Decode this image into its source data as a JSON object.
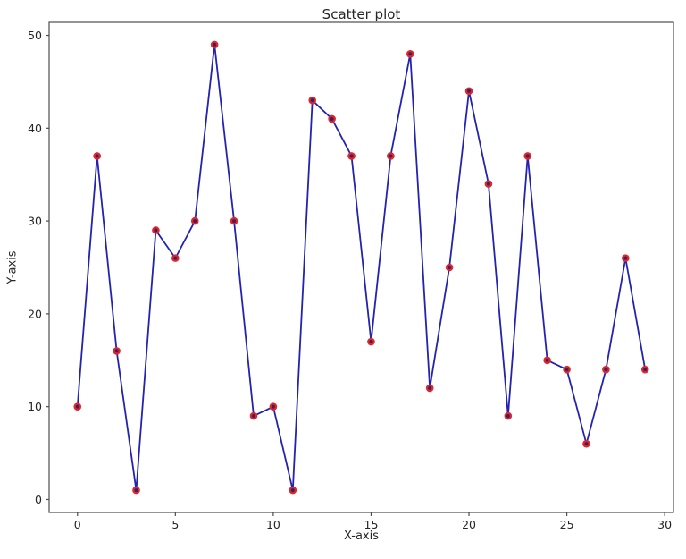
{
  "figure": {
    "title": "Scatter plot",
    "xlabel": "X-axis",
    "ylabel": "Y-axis"
  },
  "chart_data": {
    "type": "line",
    "title": "Scatter plot",
    "xlabel": "X-axis",
    "ylabel": "Y-axis",
    "x": [
      0,
      1,
      2,
      3,
      4,
      5,
      6,
      7,
      8,
      9,
      10,
      11,
      12,
      13,
      14,
      15,
      16,
      17,
      18,
      19,
      20,
      21,
      22,
      23,
      24,
      25,
      26,
      27,
      28,
      29
    ],
    "y": [
      10,
      37,
      16,
      1,
      29,
      26,
      30,
      49,
      30,
      9,
      10,
      1,
      43,
      41,
      37,
      17,
      37,
      48,
      12,
      25,
      44,
      34,
      9,
      37,
      15,
      14,
      6,
      14,
      26,
      14
    ],
    "x_ticks": [
      0,
      5,
      10,
      15,
      20,
      25,
      30
    ],
    "y_ticks": [
      0,
      10,
      20,
      30,
      40,
      50
    ],
    "xlim": [
      -1.45,
      30.45
    ],
    "ylim": [
      -1.4,
      51.4
    ],
    "grid": false,
    "legend": null,
    "marker_style": "circle",
    "line_color": "#2323b0",
    "marker_color": "#df2727",
    "marker_center_color": "#3c1e6e",
    "spine_color": "#4d4d4d",
    "tick_label_color": "#262626"
  }
}
